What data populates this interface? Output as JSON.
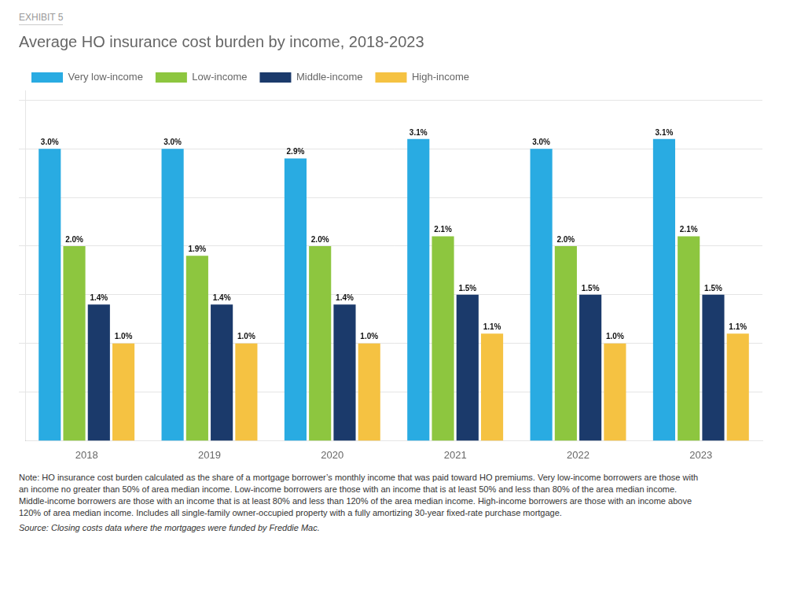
{
  "chart_data": {
    "type": "bar",
    "title": "Average HO insurance cost burden by income, 2018-2023",
    "subtitle": "EXHIBIT 5",
    "categories": [
      "2018",
      "2019",
      "2020",
      "2021",
      "2022",
      "2023"
    ],
    "series": [
      {
        "name": "Very low-income",
        "color": "#29ABE2",
        "values": [
          3.0,
          3.0,
          2.9,
          3.1,
          3.0,
          3.1
        ],
        "value_labels": [
          "3.0%",
          "3.0%",
          "2.9%",
          "3.1%",
          "3.0%",
          "3.1%"
        ]
      },
      {
        "name": "Low-income",
        "color": "#8DC63F",
        "values": [
          2.0,
          1.9,
          2.0,
          2.1,
          2.0,
          2.1
        ],
        "value_labels": [
          "2.0%",
          "1.9%",
          "2.0%",
          "2.1%",
          "2.0%",
          "2.1%"
        ]
      },
      {
        "name": "Middle-income",
        "color": "#1B3A6B",
        "values": [
          1.4,
          1.4,
          1.4,
          1.5,
          1.5,
          1.5
        ],
        "value_labels": [
          "1.4%",
          "1.4%",
          "1.4%",
          "1.5%",
          "1.5%",
          "1.5%"
        ]
      },
      {
        "name": "High-income",
        "color": "#F5C242",
        "values": [
          1.0,
          1.0,
          1.0,
          1.1,
          1.0,
          1.1
        ],
        "value_labels": [
          "1.0%",
          "1.0%",
          "1.0%",
          "1.1%",
          "1.0%",
          "1.1%"
        ]
      }
    ],
    "ylim": [
      0,
      3.6
    ],
    "yticks": [
      0.5,
      1.0,
      1.5,
      2.0,
      2.5,
      3.0,
      3.5
    ],
    "grid": true,
    "legend": "upper left",
    "data_labels": true,
    "tick_labels": "x",
    "annotations": [
      "Note: HO insurance cost burden calculated as the share of a mortgage borrower’s monthly income that was paid toward HO premiums. Very low-income  borrowers are those with",
      "an income no greater than 50% of area median income. Low-income borrowers are those with an income that is at least 50% and less than 80% of the area median income.",
      "Middle-income borrowers are those with an income that is at least 80% and less than 120% of the area median income. High-income borrowers are those with an income above",
      "120% of area median income. Includes all single-family owner-occupied property with a fully amortizing 30-year fixed-rate purchase mortgage.",
      "Source: Closing costs data where the mortgages were funded by Freddie Mac."
    ]
  }
}
